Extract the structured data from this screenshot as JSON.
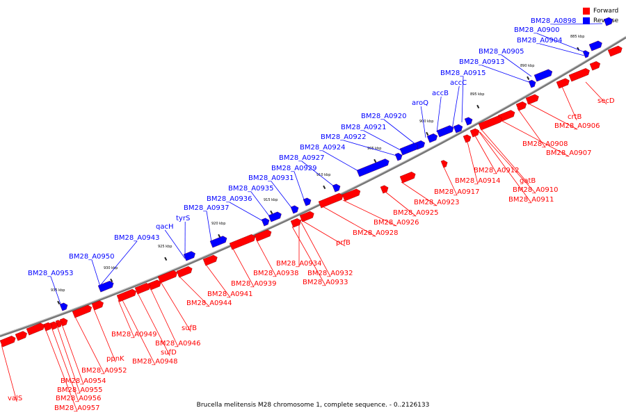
{
  "caption": "Brucella melitensis M28 chromosome 1, complete sequence. - 0..2126133",
  "legend": [
    {
      "label": "Forward",
      "color": "#ff0000"
    },
    {
      "label": "Reverse",
      "color": "#0000ff"
    }
  ],
  "colors": {
    "forward": "#ff0000",
    "reverse": "#0000ff",
    "backbone": "#777777"
  },
  "ticks": [
    "935 kbp",
    "930 kbp",
    "925 kbp",
    "920 kbp",
    "915 kbp",
    "910 kbp",
    "905 kbp",
    "900 kbp",
    "895 kbp",
    "890 kbp",
    "885 kbp"
  ],
  "reverse_genes": [
    "BM28_A0898",
    "BM28_A0900",
    "BM28_A0904",
    "BM28_A0905",
    "BM28_A0913",
    "BM28_A0915",
    "accC",
    "accB",
    "aroQ",
    "BM28_A0920",
    "BM28_A0921",
    "BM28_A0922",
    "BM28_A0924",
    "BM28_A0927",
    "BM28_A0929",
    "BM28_A0931",
    "BM28_A0935",
    "BM28_A0936",
    "BM28_A0937",
    "tyrS",
    "qacH",
    "BM28_A0943",
    "BM28_A0950",
    "BM28_A0953"
  ],
  "forward_genes": [
    "secD",
    "crtB",
    "BM28_A0906",
    "BM28_A0908",
    "BM28_A0907",
    "gatB",
    "BM28_A0912",
    "BM28_A0914",
    "BM28_A0910",
    "BM28_A0911",
    "BM28_A0917",
    "BM28_A0923",
    "BM28_A0925",
    "BM28_A0926",
    "BM28_A0928",
    "prfB",
    "BM28_A0934",
    "BM28_A0932",
    "BM28_A0933",
    "BM28_A0938",
    "BM28_A0939",
    "BM28_A0941",
    "BM28_A0944",
    "sufB",
    "BM28_A0946",
    "sufD",
    "BM28_A0948",
    "BM28_A0949",
    "ppnK",
    "BM28_A0952",
    "BM28_A0954",
    "BM28_A0955",
    "BM28_A0956",
    "BM28_A0957",
    "valS"
  ]
}
